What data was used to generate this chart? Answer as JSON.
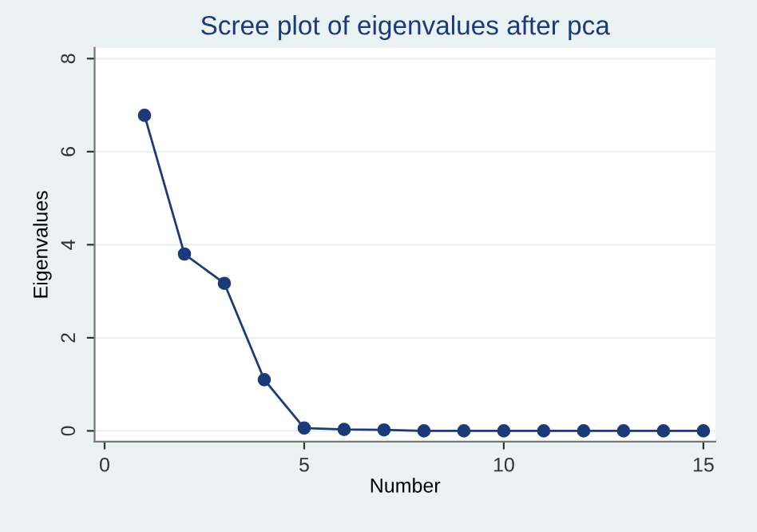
{
  "chart_data": {
    "type": "line",
    "title": "Scree plot of eigenvalues after pca",
    "xlabel": "Number",
    "ylabel": "Eigenvalues",
    "x": [
      1,
      2,
      3,
      4,
      5,
      6,
      7,
      8,
      9,
      10,
      11,
      12,
      13,
      14,
      15
    ],
    "series": [
      {
        "color": "#1a3a7a",
        "values": [
          6.78,
          3.8,
          3.17,
          1.1,
          0.06,
          0.03,
          0.02,
          0,
          0,
          0,
          0,
          0,
          0,
          0,
          0
        ]
      }
    ],
    "xlim": [
      -0.25,
      15.3
    ],
    "ylim": [
      -0.23,
      8.23
    ],
    "xticks": [
      0,
      5,
      10,
      15
    ],
    "yticks": [
      0,
      2,
      4,
      6,
      8
    ],
    "grid": "y",
    "marker": "circle",
    "line_style": "solid"
  }
}
